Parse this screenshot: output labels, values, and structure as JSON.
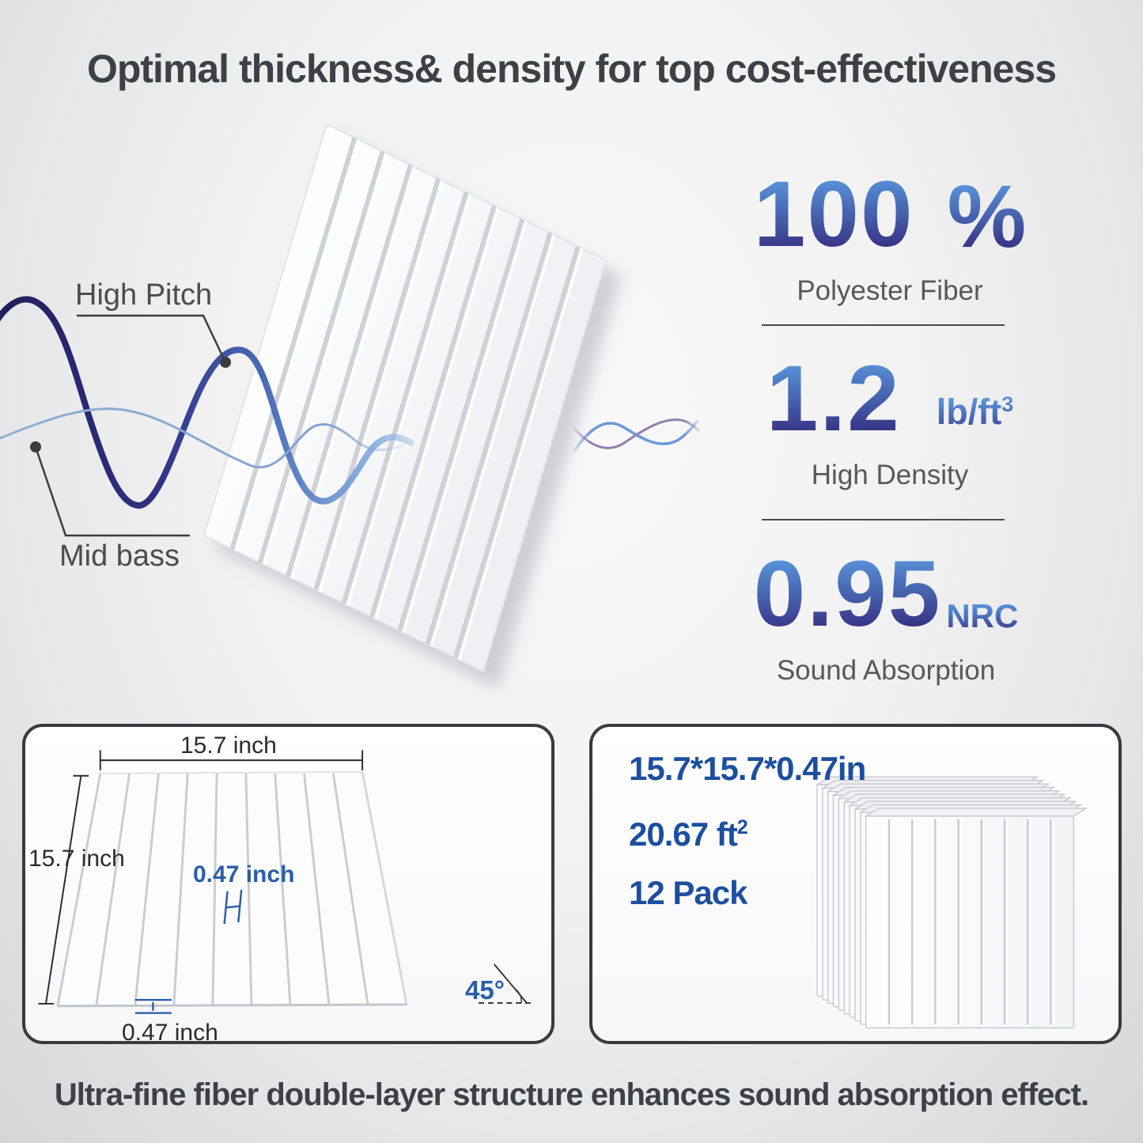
{
  "title": "Optimal thickness& density for top cost-effectiveness",
  "hero": {
    "high_pitch_label": "High Pitch",
    "mid_bass_label": "Mid bass"
  },
  "stats": [
    {
      "value": "100",
      "unit": "%",
      "label": "Polyester Fiber"
    },
    {
      "value": "1.2",
      "unit": "lb/ft",
      "unit_sup": "3",
      "label": "High Density"
    },
    {
      "value": "0.95",
      "unit": "NRC",
      "label": "Sound Absorption"
    }
  ],
  "dimension_box": {
    "width_label": "15.7 inch",
    "height_label": "15.7 inch",
    "ridge_width_label": "0.47 inch",
    "groove_width_label": "0.47 inch",
    "angle_label": "45°"
  },
  "pack_box": {
    "size_label": "15.7*15.7*0.47in",
    "area_label": "20.67 ft",
    "area_sup": "2",
    "pack_label": "12 Pack"
  },
  "caption": "Ultra-fine fiber double-layer structure enhances sound absorption effect.",
  "colors": {
    "bg-edge": "#d6d6d8",
    "title": "#3e4144",
    "num-top": "#5b9be0",
    "num-bottom": "#33297d",
    "stat-label": "#56585a",
    "divider": "#4a4a4a",
    "blue-dim": "#2b5ea7",
    "pack-text": "#1d4f9e",
    "box-border": "#3b3b3b"
  }
}
